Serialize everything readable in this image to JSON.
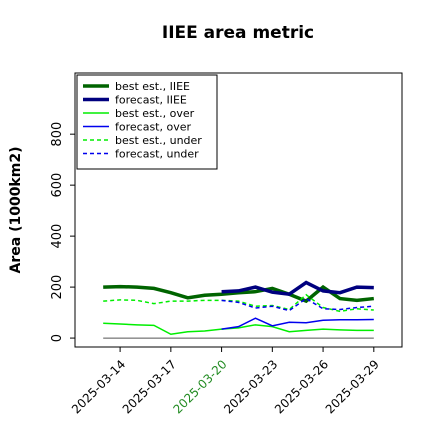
{
  "chart_data": {
    "type": "line",
    "title": "IIEE area metric",
    "ylabel": "Area (1000km2)",
    "x": [
      "2025-03-13",
      "2025-03-14",
      "2025-03-15",
      "2025-03-16",
      "2025-03-17",
      "2025-03-18",
      "2025-03-19",
      "2025-03-20",
      "2025-03-21",
      "2025-03-22",
      "2025-03-23",
      "2025-03-24",
      "2025-03-25",
      "2025-03-26",
      "2025-03-27",
      "2025-03-28",
      "2025-03-29"
    ],
    "xlim": [
      "2025-03-11T08:00",
      "2025-03-30T16:00"
    ],
    "xticks": [
      "2025-03-14",
      "2025-03-17",
      "2025-03-20",
      "2025-03-23",
      "2025-03-26",
      "2025-03-29"
    ],
    "xtick_colors": [
      "#000000",
      "#000000",
      "#228b22",
      "#000000",
      "#000000",
      "#000000"
    ],
    "ylim": [
      -35,
      1040
    ],
    "yticks": [
      0,
      200,
      400,
      600,
      800
    ],
    "hline": 0,
    "legend": "upper left",
    "series": [
      {
        "name": "best est., IIEE",
        "color": "#006400",
        "width": 3.5,
        "dash": "",
        "values": [
          200,
          202,
          200,
          195,
          178,
          158,
          168,
          172,
          178,
          182,
          195,
          172,
          145,
          200,
          155,
          148,
          155
        ]
      },
      {
        "name": "forecast, IIEE",
        "color": "#00007f",
        "width": 3.5,
        "dash": "",
        "values": [
          null,
          null,
          null,
          null,
          null,
          null,
          null,
          182,
          185,
          200,
          180,
          172,
          218,
          185,
          178,
          200,
          198
        ]
      },
      {
        "name": "best est., over",
        "color": "#00ee00",
        "width": 1.5,
        "dash": "",
        "values": [
          58,
          55,
          52,
          50,
          15,
          25,
          28,
          35,
          40,
          52,
          45,
          25,
          30,
          35,
          32,
          30,
          30
        ]
      },
      {
        "name": "forecast, over",
        "color": "#0000ee",
        "width": 1.5,
        "dash": "",
        "values": [
          null,
          null,
          null,
          null,
          null,
          null,
          null,
          35,
          45,
          78,
          48,
          62,
          60,
          70,
          72,
          72,
          73
        ]
      },
      {
        "name": "best est., under",
        "color": "#00ee00",
        "width": 1.5,
        "dash": "4,3",
        "values": [
          145,
          150,
          148,
          135,
          145,
          145,
          148,
          148,
          145,
          125,
          128,
          112,
          170,
          120,
          105,
          115,
          110
        ]
      },
      {
        "name": "forecast, under",
        "color": "#0000ee",
        "width": 1.5,
        "dash": "4,3",
        "values": [
          null,
          null,
          null,
          null,
          null,
          null,
          null,
          148,
          140,
          118,
          125,
          108,
          155,
          115,
          112,
          120,
          125
        ]
      }
    ]
  }
}
